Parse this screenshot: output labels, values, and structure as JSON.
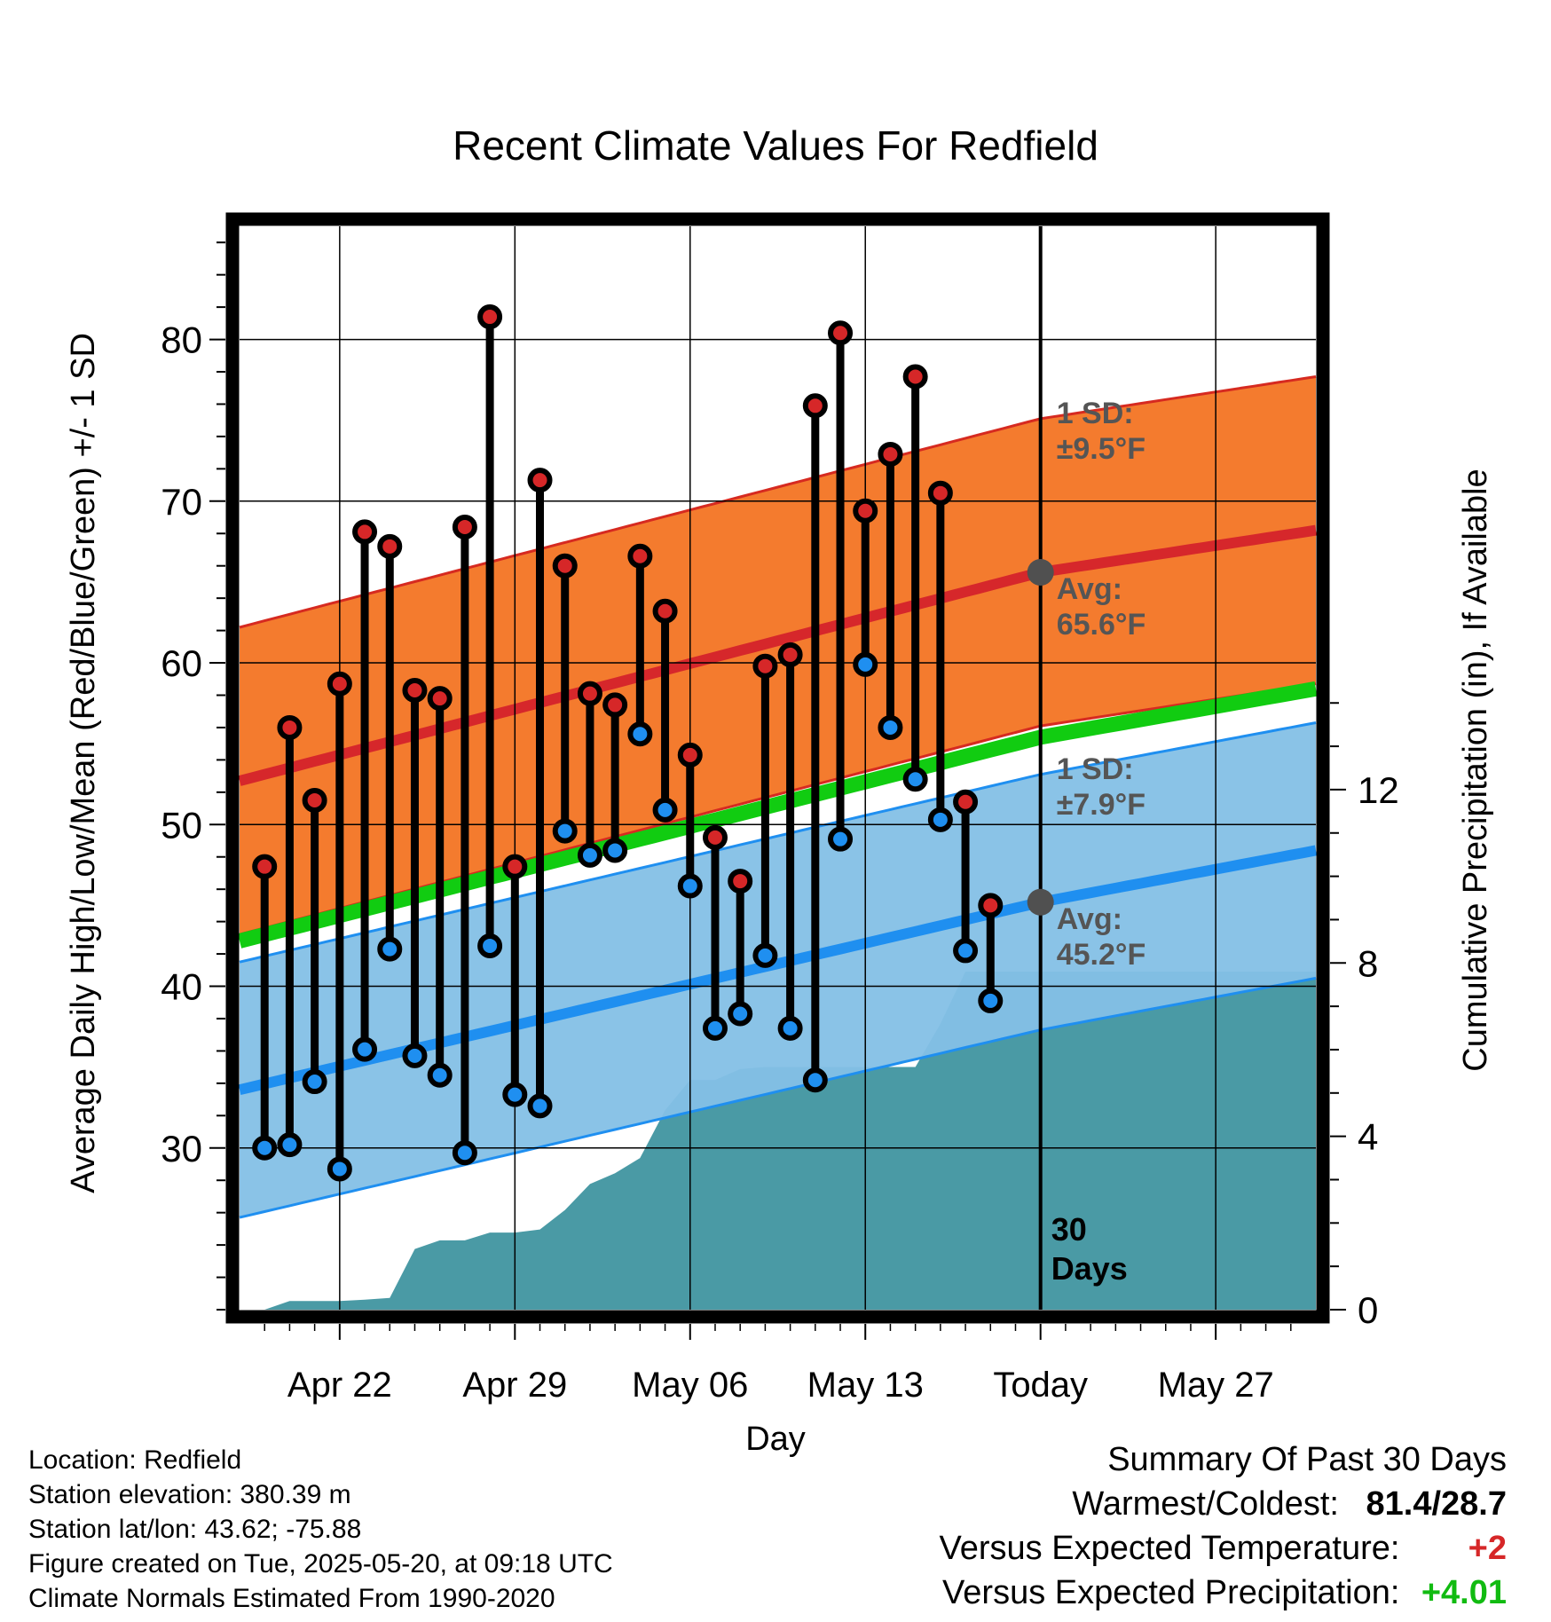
{
  "chart_data": {
    "type": "line",
    "title": "Recent Climate Values For Redfield",
    "xlabel": "Day",
    "ylabel": "Average Daily High/Low/Mean (Red/Blue/Green) +/- 1 SD",
    "y2label": "Cumulative Precipitation (in), If Available",
    "xlim": [
      "2025-04-18",
      "2025-05-31"
    ],
    "ylim": [
      20,
      87
    ],
    "y2lim": [
      0,
      25
    ],
    "grid": true,
    "x_ticks": [
      {
        "date": "2025-04-22",
        "label": "Apr 22"
      },
      {
        "date": "2025-04-29",
        "label": "Apr 29"
      },
      {
        "date": "2025-05-06",
        "label": "May 06"
      },
      {
        "date": "2025-05-13",
        "label": "May 13"
      },
      {
        "date": "2025-05-20",
        "label": "Today"
      },
      {
        "date": "2025-05-27",
        "label": "May 27"
      }
    ],
    "y_ticks": [
      "30",
      "40",
      "50",
      "60",
      "70",
      "80"
    ],
    "y2_ticks": [
      "0",
      "4",
      "8",
      "12"
    ],
    "today": "2025-05-20",
    "today_label": [
      "30",
      "Days"
    ],
    "colors": {
      "high_band": "#f47b2e",
      "high_line": "#d6272b",
      "low_band": "#84c0e6",
      "low_line": "#1f8ff0",
      "mean_line": "#11cc11",
      "precip": "#4a9aa5",
      "high_marker": "#d62728",
      "low_marker": "#1f8ff0",
      "avg_marker": "#505050"
    },
    "normals": {
      "dates": [
        "2025-04-18",
        "2025-05-20",
        "2025-05-31"
      ],
      "high_avg": [
        52.7,
        65.6,
        68.2
      ],
      "high_sd": 9.5,
      "low_avg": [
        33.6,
        45.2,
        48.4
      ],
      "low_sd": 7.9,
      "mean_avg": [
        42.8,
        55.4,
        58.4
      ]
    },
    "annotations": [
      {
        "lines": [
          "1 SD:",
          "±9.5°F"
        ],
        "near": "high_upper_band"
      },
      {
        "lines": [
          "Avg:",
          "65.6°F"
        ],
        "near": "high_avg_today"
      },
      {
        "lines": [
          "1 SD:",
          "±7.9°F"
        ],
        "near": "low_upper_band"
      },
      {
        "lines": [
          "Avg:",
          "45.2°F"
        ],
        "near": "low_avg_today"
      }
    ],
    "daily": {
      "dates": [
        "2025-04-19",
        "2025-04-20",
        "2025-04-21",
        "2025-04-22",
        "2025-04-23",
        "2025-04-24",
        "2025-04-25",
        "2025-04-26",
        "2025-04-27",
        "2025-04-28",
        "2025-04-29",
        "2025-04-30",
        "2025-05-01",
        "2025-05-02",
        "2025-05-03",
        "2025-05-04",
        "2025-05-05",
        "2025-05-06",
        "2025-05-07",
        "2025-05-08",
        "2025-05-09",
        "2025-05-10",
        "2025-05-11",
        "2025-05-12",
        "2025-05-13",
        "2025-05-14",
        "2025-05-15",
        "2025-05-16",
        "2025-05-17",
        "2025-05-18",
        "2025-05-19"
      ],
      "high": [
        47.4,
        56.0,
        51.5,
        58.7,
        68.1,
        67.2,
        58.3,
        57.8,
        68.4,
        81.4,
        47.4,
        71.3,
        66.0,
        58.1,
        57.4,
        66.6,
        63.2,
        54.3,
        49.2,
        46.5,
        59.8,
        60.5,
        75.9,
        80.4,
        69.4,
        72.9,
        77.7,
        70.5,
        51.4,
        45.0,
        null
      ],
      "low": [
        30.0,
        30.2,
        34.1,
        28.7,
        36.1,
        42.3,
        35.7,
        34.5,
        29.7,
        42.5,
        33.3,
        32.6,
        49.6,
        48.1,
        48.4,
        55.6,
        50.9,
        46.2,
        37.4,
        38.3,
        41.9,
        37.4,
        34.2,
        49.1,
        59.9,
        56.0,
        52.8,
        50.3,
        42.2,
        39.1,
        null
      ]
    },
    "precip": {
      "dates": [
        "2025-04-19",
        "2025-04-20",
        "2025-04-21",
        "2025-04-22",
        "2025-04-23",
        "2025-04-24",
        "2025-04-25",
        "2025-04-26",
        "2025-04-27",
        "2025-04-28",
        "2025-04-29",
        "2025-04-30",
        "2025-05-01",
        "2025-05-02",
        "2025-05-03",
        "2025-05-04",
        "2025-05-05",
        "2025-05-06",
        "2025-05-07",
        "2025-05-08",
        "2025-05-09",
        "2025-05-10",
        "2025-05-11",
        "2025-05-12",
        "2025-05-13",
        "2025-05-14",
        "2025-05-15",
        "2025-05-16",
        "2025-05-17",
        "2025-05-18",
        "2025-05-19",
        "2025-05-20",
        "2025-05-31"
      ],
      "values": [
        0.0,
        0.2,
        0.2,
        0.2,
        0.23,
        0.27,
        1.4,
        1.6,
        1.6,
        1.78,
        1.78,
        1.85,
        2.3,
        2.9,
        3.15,
        3.5,
        4.6,
        5.3,
        5.3,
        5.55,
        5.6,
        5.6,
        5.6,
        5.6,
        5.6,
        5.6,
        5.6,
        6.6,
        7.8,
        7.8,
        7.8,
        7.8,
        7.8
      ]
    }
  },
  "info": {
    "location": "Location: Redfield",
    "elevation": "Station elevation: 380.39 m",
    "latlon": "Station lat/lon: 43.62; -75.88",
    "created": "Figure created on Tue, 2025-05-20, at 09:18 UTC",
    "normals_note": "Climate Normals Estimated From 1990-2020"
  },
  "summary": {
    "heading": "Summary Of Past 30 Days",
    "warmest_label": "Warmest/Coldest:",
    "warmest_value": "81.4/28.7",
    "temp_label": "Versus Expected Temperature:",
    "temp_value": "+2",
    "temp_color": "#d62728",
    "precip_label": "Versus Expected Precipitation:",
    "precip_value": "+4.01",
    "precip_color": "#11bb11"
  }
}
